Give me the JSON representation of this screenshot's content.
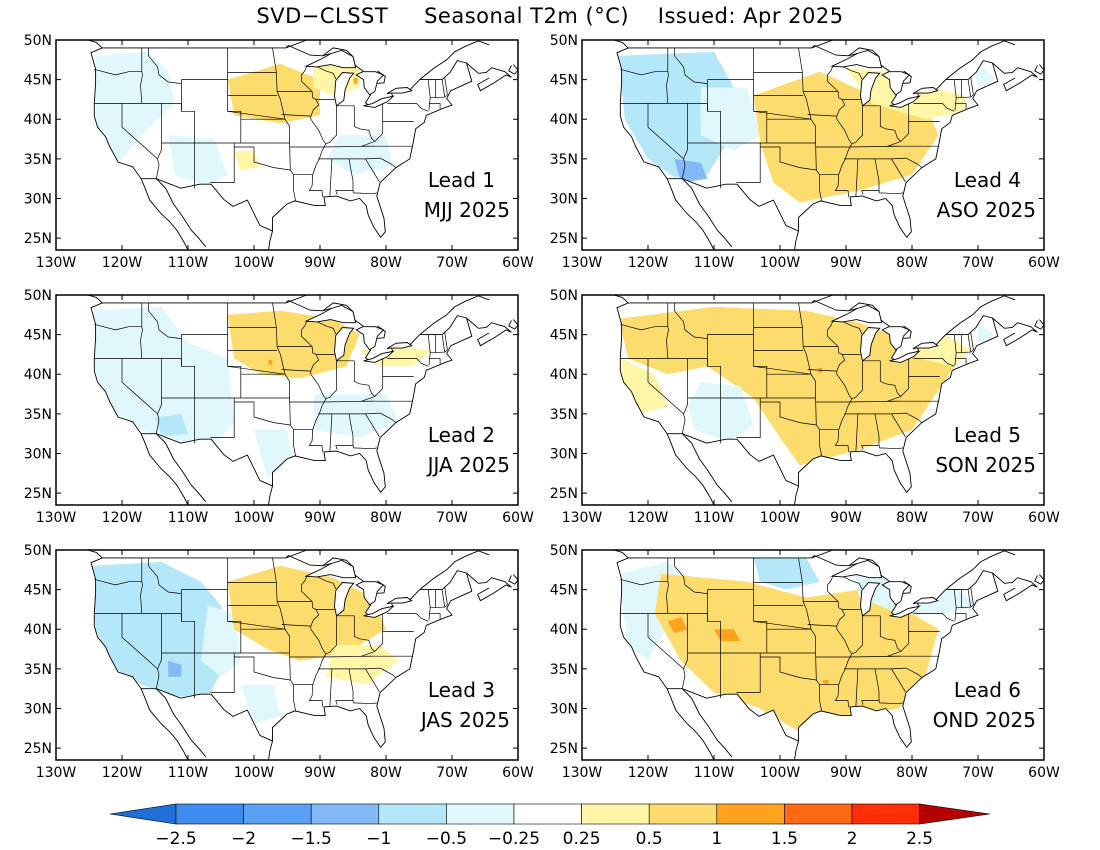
{
  "title": "SVD−CLSST     Seasonal T2m (°C)    Issued: Apr 2025",
  "lat_ticks": [
    "50N",
    "45N",
    "40N",
    "35N",
    "30N",
    "25N"
  ],
  "lon_ticks": [
    "130W",
    "120W",
    "110W",
    "100W",
    "90W",
    "80W",
    "70W",
    "60W"
  ],
  "panels": [
    {
      "lead": "Lead 1",
      "season": "MJJ 2025",
      "pattern": "lead1"
    },
    {
      "lead": "Lead 4",
      "season": "ASO 2025",
      "pattern": "lead4"
    },
    {
      "lead": "Lead 2",
      "season": "JJA 2025",
      "pattern": "lead2"
    },
    {
      "lead": "Lead 5",
      "season": "SON 2025",
      "pattern": "lead5"
    },
    {
      "lead": "Lead 3",
      "season": "JAS 2025",
      "pattern": "lead3"
    },
    {
      "lead": "Lead 6",
      "season": "OND 2025",
      "pattern": "lead6"
    }
  ],
  "colorbar": {
    "labels": [
      "−2.5",
      "−2",
      "−1.5",
      "−1",
      "−0.5",
      "−0.25",
      "0.25",
      "0.5",
      "1",
      "1.5",
      "2",
      "2.5"
    ],
    "colors": [
      "#1f6fd6",
      "#3f8cf0",
      "#5aa0f4",
      "#82b9f6",
      "#b4e8f8",
      "#e0f8fc",
      "#ffffff",
      "#fff6a8",
      "#fddc6e",
      "#ffa21e",
      "#ff6a10",
      "#ff2e06",
      "#b30000"
    ]
  },
  "colors": {
    "cool_light": "#e0f8fc",
    "cool_mid": "#b4e8f8",
    "cool_strong": "#82b9f6",
    "warm_light": "#fff6a8",
    "warm_mid": "#fddc6e",
    "warm_strong": "#ffa21e",
    "outline": "#000000"
  }
}
